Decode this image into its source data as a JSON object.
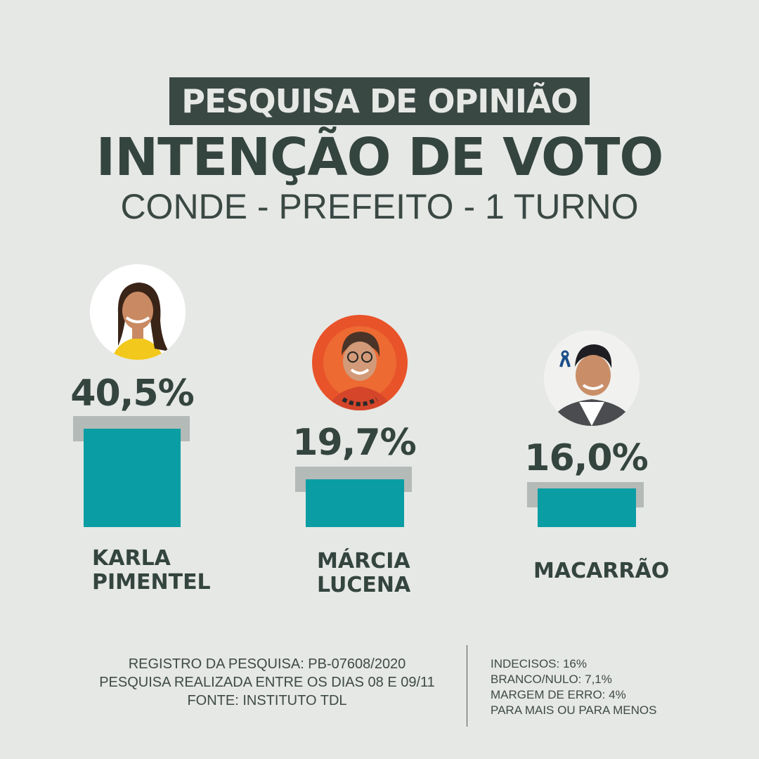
{
  "header": {
    "badge": "PESQUISA DE OPINIÃO",
    "title": "INTENÇÃO DE VOTO",
    "subtitle": "CONDE - PREFEITO - 1 TURNO"
  },
  "chart_data": {
    "type": "bar",
    "categories": [
      "KARLA PIMENTEL",
      "MÁRCIA LUCENA",
      "MACARRÃO"
    ],
    "values": [
      40.5,
      19.7,
      16.0
    ],
    "value_labels": [
      "40,5%",
      "19,7%",
      "16,0%"
    ],
    "ylim": [
      0,
      45
    ],
    "colors": {
      "bar": "#0a9ea4",
      "bar_cap": "#b4bab7"
    }
  },
  "candidates": [
    {
      "name_line1": "KARLA",
      "name_line2": "PIMENTEL",
      "percent": "40,5%",
      "photo_bg": "#ffffff"
    },
    {
      "name_line1": "MÁRCIA",
      "name_line2": "LUCENA",
      "percent": "19,7%",
      "photo_bg": "#e8532a"
    },
    {
      "name_line1": "MACARRÃO",
      "name_line2": "",
      "percent": "16,0%",
      "photo_bg": "#f1f1ef"
    }
  ],
  "footer": {
    "left": [
      "REGISTRO DA PESQUISA: PB-07608/2020",
      "PESQUISA REALIZADA ENTRE OS DIAS 08 E 09/11",
      "FONTE: INSTITUTO TDL"
    ],
    "right": [
      "INDECISOS: 16%",
      "BRANCO/NULO: 7,1%",
      "MARGEM DE ERRO: 4%",
      "PARA MAIS OU PARA MENOS"
    ]
  },
  "colors": {
    "background": "#e6e8e5",
    "text": "#34443f",
    "badge_bg": "#3a4844",
    "accent": "#0a9ea4"
  }
}
